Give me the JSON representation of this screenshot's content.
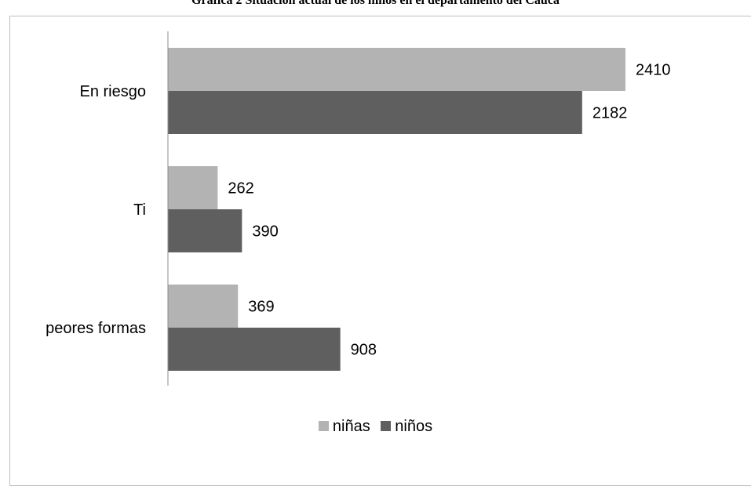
{
  "chart_data": {
    "type": "bar",
    "orientation": "horizontal",
    "title": "Gráfica 2 Situación actual de los niños en el departamento del Cauca",
    "categories": [
      "En riesgo",
      "Ti",
      "peores formas"
    ],
    "series": [
      {
        "name": "niñas",
        "values": [
          2410,
          262,
          369
        ],
        "color": "#b3b3b3"
      },
      {
        "name": "niños",
        "values": [
          2182,
          390,
          908
        ],
        "color": "#5f5f5f"
      }
    ],
    "xlim": [
      0,
      2410
    ],
    "legend": "bottom",
    "grid": false
  }
}
